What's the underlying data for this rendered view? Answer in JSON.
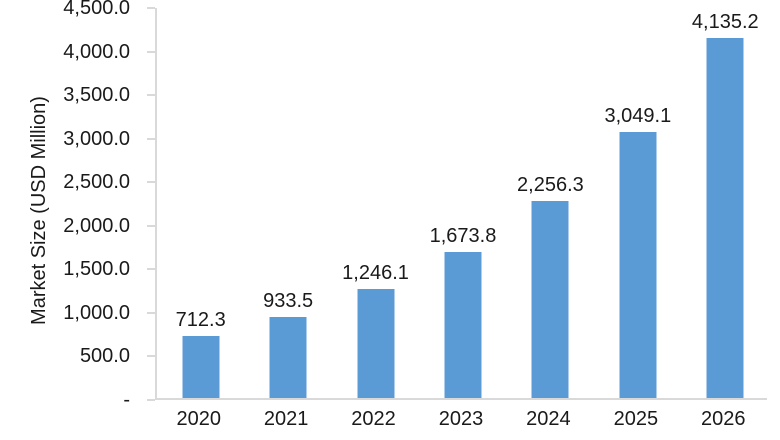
{
  "chart_data": {
    "type": "bar",
    "title": "",
    "xlabel": "",
    "ylabel": "Market Size (USD Million)",
    "categories": [
      "2020",
      "2021",
      "2022",
      "2023",
      "2024",
      "2025",
      "2026"
    ],
    "values": [
      712.3,
      933.5,
      1246.1,
      1673.8,
      2256.3,
      3049.1,
      4135.2
    ],
    "value_labels": [
      "712.3",
      "933.5",
      "1,246.1",
      "1,673.8",
      "2,256.3",
      "3,049.1",
      "4,135.2"
    ],
    "ylim": [
      0,
      4500
    ],
    "ytick_step": 500,
    "ytick_labels_top_to_bottom": [
      "4,500.0",
      "4,000.0",
      "3,500.0",
      "3,000.0",
      "2,500.0",
      "2,000.0",
      "1,500.0",
      "1,000.0",
      "500.0",
      "-"
    ],
    "grid": false,
    "legend_position": "none",
    "colors": {
      "bar_fill": "#5b9bd5",
      "axis_line": "#d9d9d9",
      "text": "#1a1a1a",
      "background": "#ffffff"
    }
  }
}
